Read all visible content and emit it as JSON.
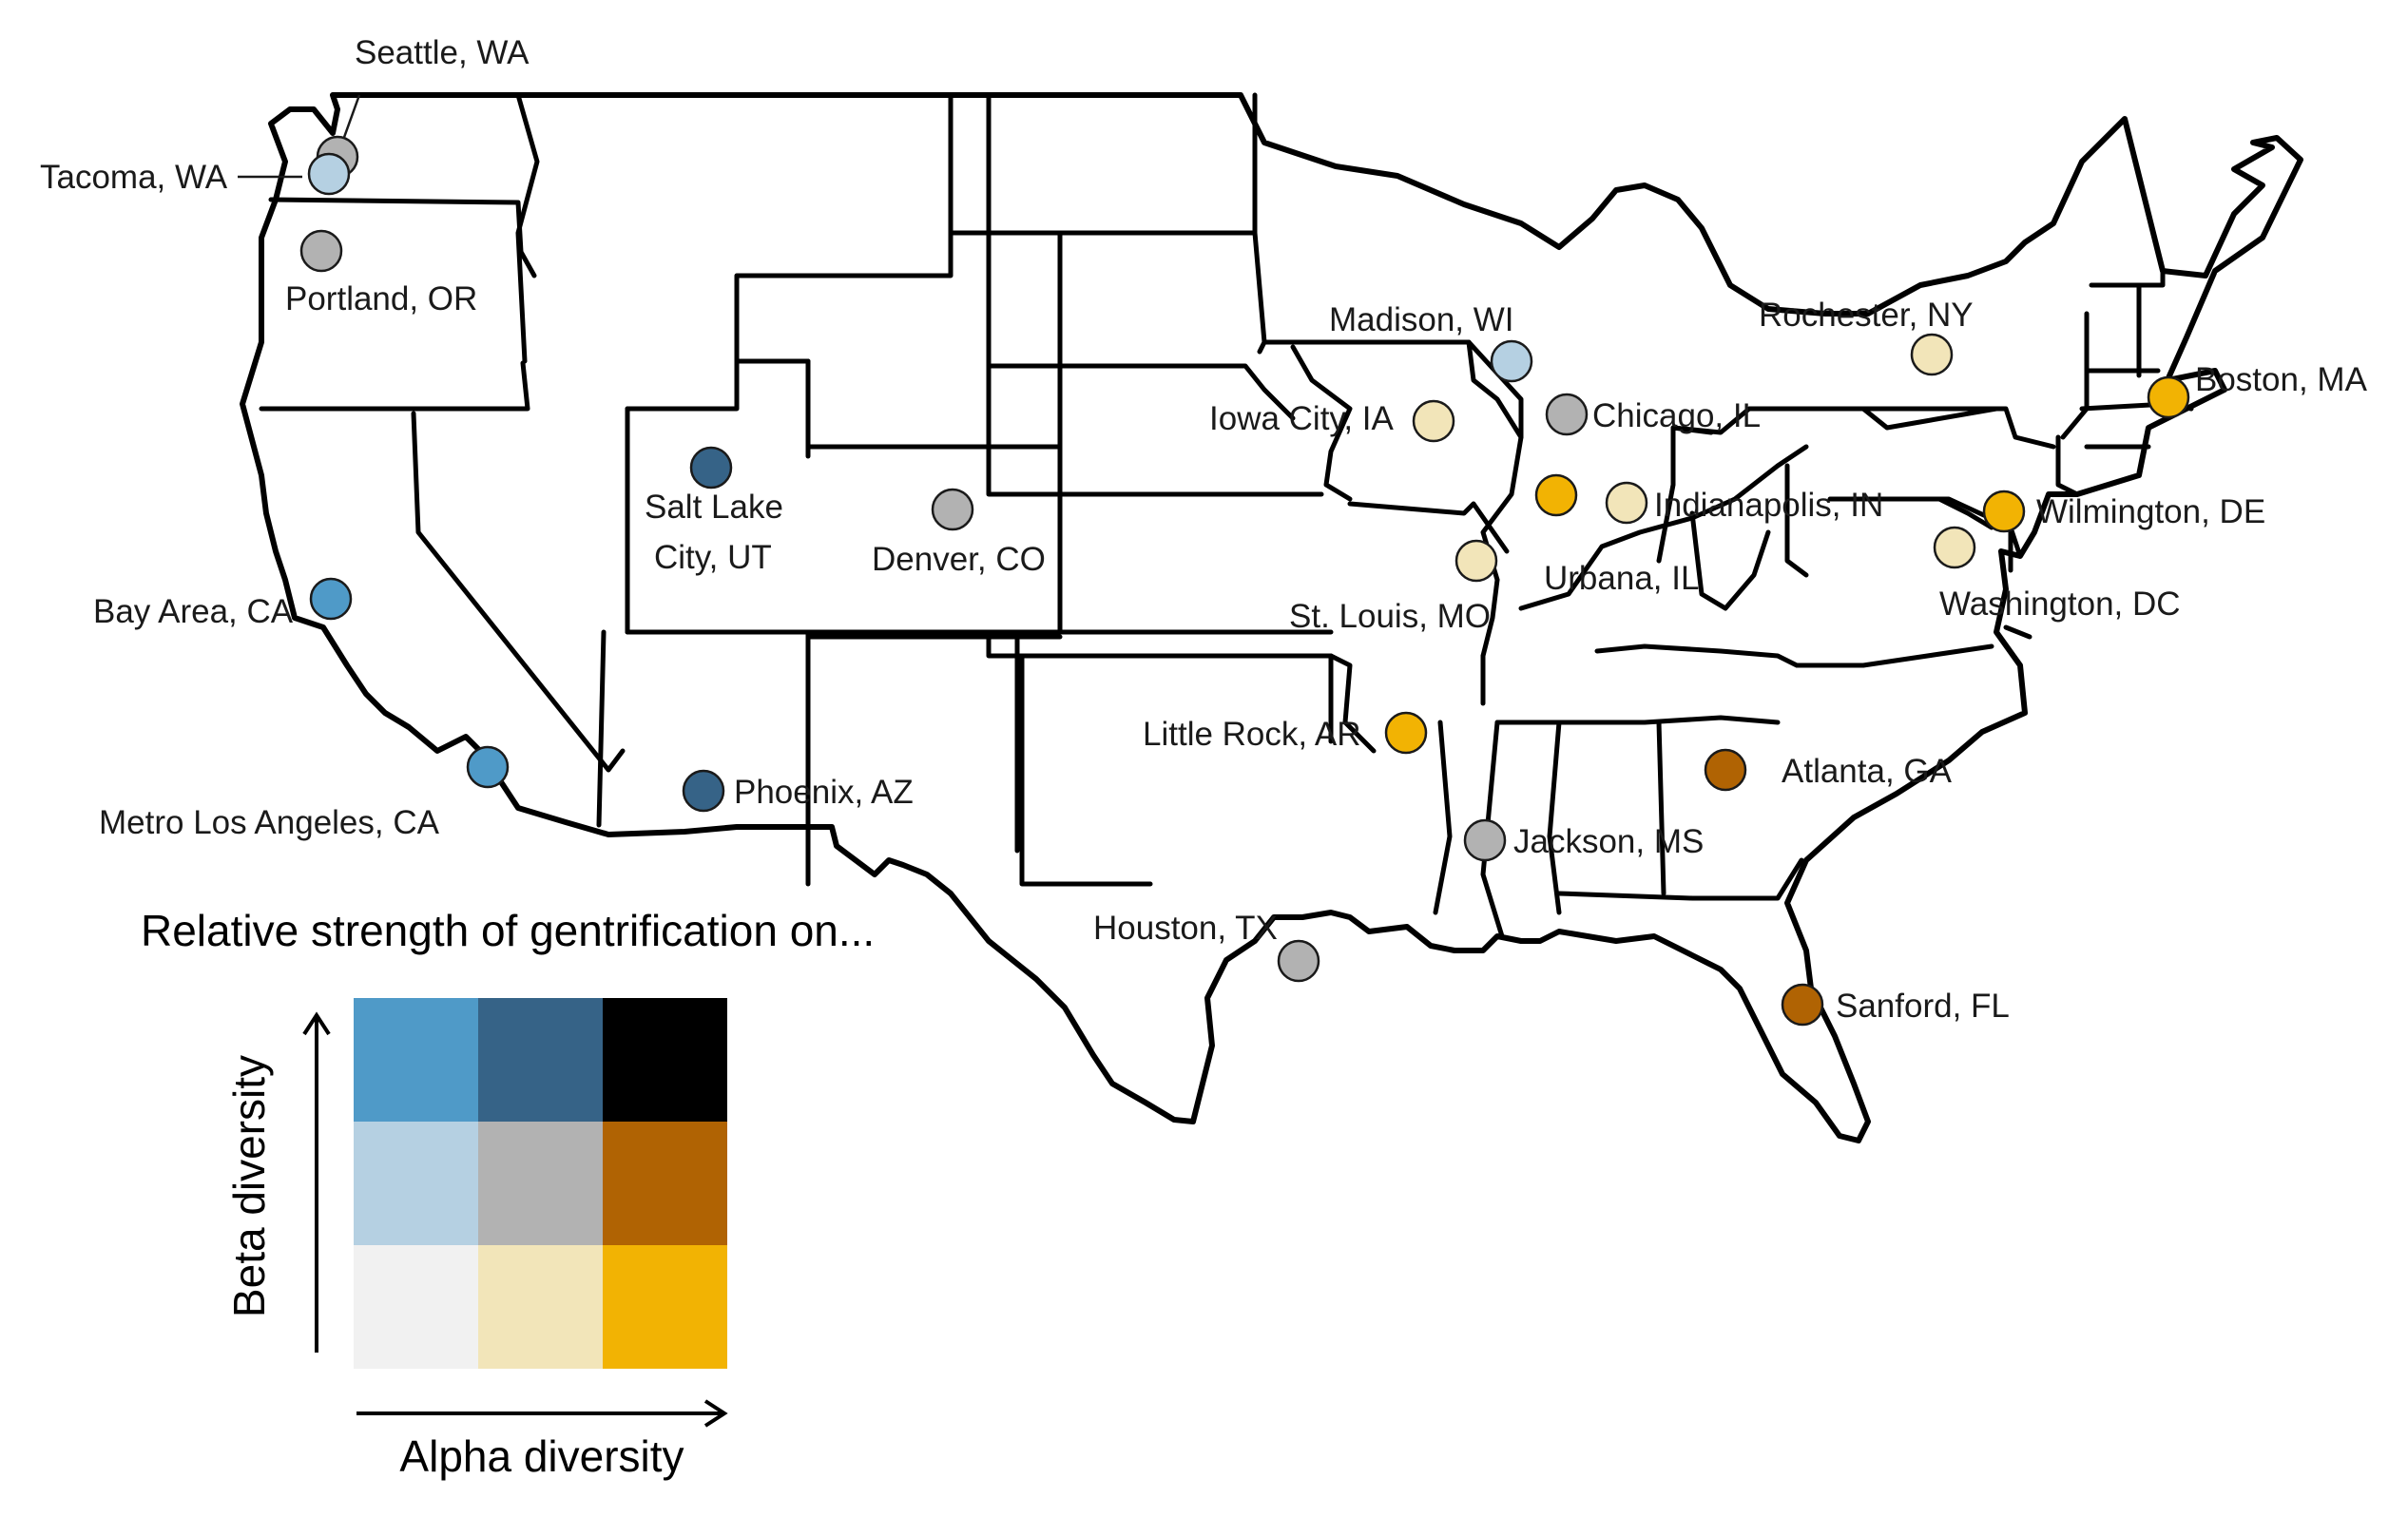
{
  "legend": {
    "title": "Relative strength of gentrification on...",
    "x_axis_label": "Alpha diversity",
    "y_axis_label": "Beta diversity",
    "grid_colors": [
      [
        "#4f9ac8",
        "#366387",
        "#000000"
      ],
      [
        "#b5d0e2",
        "#b2b2b2",
        "#b06303"
      ],
      [
        "#f1f1f1",
        "#f2e5b9",
        "#f2b303"
      ]
    ]
  },
  "cities": [
    {
      "name": "Seattle, WA",
      "color": "#b2b2b2"
    },
    {
      "name": "Tacoma, WA",
      "color": "#b5d0e2"
    },
    {
      "name": "Portland, OR",
      "color": "#b2b2b2"
    },
    {
      "name": "Bay Area, CA",
      "color": "#4f9ac8"
    },
    {
      "name": "Metro Los Angeles, CA",
      "color": "#4f9ac8"
    },
    {
      "name": "Salt Lake City, UT",
      "color": "#366387"
    },
    {
      "name": "Phoenix, AZ",
      "color": "#366387"
    },
    {
      "name": "Denver, CO",
      "color": "#b2b2b2"
    },
    {
      "name": "Madison, WI",
      "color": "#b5d0e2"
    },
    {
      "name": "Iowa City, IA",
      "color": "#f2e5b9"
    },
    {
      "name": "Chicago, IL",
      "color": "#b2b2b2"
    },
    {
      "name": "Urbana, IL",
      "color": "#f2b303"
    },
    {
      "name": "Indianapolis, IN",
      "color": "#f2e5b9"
    },
    {
      "name": "St. Louis, MO",
      "color": "#f2e5b9"
    },
    {
      "name": "Rochester, NY",
      "color": "#f2e5b9"
    },
    {
      "name": "Boston, MA",
      "color": "#f2b303"
    },
    {
      "name": "Wilmington, DE",
      "color": "#f2b303"
    },
    {
      "name": "Washington, DC",
      "color": "#f2e5b9"
    },
    {
      "name": "Little Rock, AR",
      "color": "#f2b303"
    },
    {
      "name": "Atlanta, GA",
      "color": "#b06303"
    },
    {
      "name": "Jackson, MS",
      "color": "#b2b2b2"
    },
    {
      "name": "Houston, TX",
      "color": "#b2b2b2"
    },
    {
      "name": "Sanford, FL",
      "color": "#b06303"
    }
  ]
}
